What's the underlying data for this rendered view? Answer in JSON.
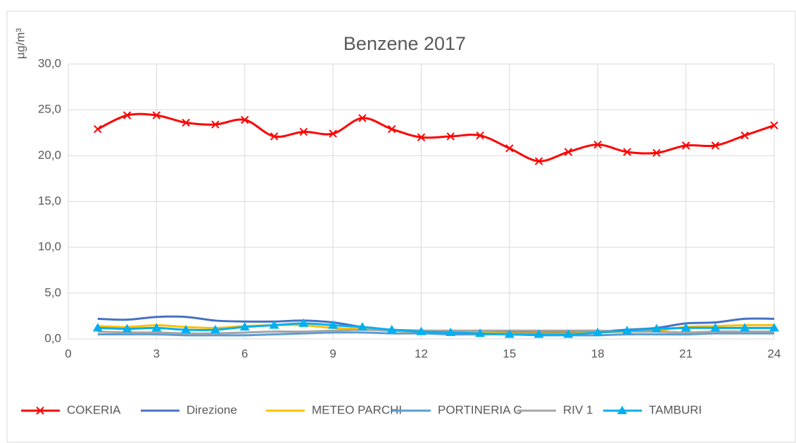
{
  "chart_data": {
    "type": "line",
    "title": "Benzene 2017",
    "y_label": "µg/m³",
    "x": [
      1,
      2,
      3,
      4,
      5,
      6,
      7,
      8,
      9,
      10,
      11,
      12,
      13,
      14,
      15,
      16,
      17,
      18,
      19,
      20,
      21,
      22,
      23,
      24
    ],
    "xlim": [
      0,
      24
    ],
    "xticks": [
      0,
      3,
      6,
      9,
      12,
      15,
      18,
      21,
      24
    ],
    "ylim": [
      0,
      30
    ],
    "yticks": [
      {
        "value": 0,
        "label": "0,0"
      },
      {
        "value": 5,
        "label": "5,0"
      },
      {
        "value": 10,
        "label": "10,0"
      },
      {
        "value": 15,
        "label": "15,0"
      },
      {
        "value": 20,
        "label": "20,0"
      },
      {
        "value": 25,
        "label": "25,0"
      },
      {
        "value": 30,
        "label": "30,0"
      }
    ],
    "grid": true,
    "smooth": true,
    "legend": "bottom",
    "series": [
      {
        "name": "COKERIA",
        "color": "#ff0000",
        "marker": "x",
        "values": [
          22.9,
          24.4,
          24.4,
          23.6,
          23.4,
          23.9,
          22.1,
          22.6,
          22.4,
          24.1,
          22.9,
          22.0,
          22.1,
          22.2,
          20.8,
          19.4,
          20.4,
          21.2,
          20.4,
          20.3,
          21.1,
          21.1,
          22.2,
          23.3
        ]
      },
      {
        "name": "Direzione",
        "color": "#4472c4",
        "values": [
          2.2,
          2.1,
          2.4,
          2.4,
          2.0,
          1.9,
          1.9,
          2.0,
          1.8,
          1.3,
          1.0,
          0.9,
          0.8,
          0.8,
          0.7,
          0.7,
          0.7,
          0.8,
          1.0,
          1.2,
          1.7,
          1.8,
          2.2,
          2.2
        ]
      },
      {
        "name": "METEO PARCHI",
        "color": "#ffc000",
        "values": [
          1.4,
          1.3,
          1.5,
          1.3,
          1.2,
          1.4,
          1.5,
          1.5,
          1.2,
          1.1,
          0.9,
          0.8,
          0.7,
          0.7,
          0.6,
          0.6,
          0.6,
          0.7,
          0.8,
          0.9,
          1.3,
          1.4,
          1.5,
          1.5
        ]
      },
      {
        "name": "PORTINERIA C",
        "color": "#5b9bd5",
        "values": [
          0.5,
          0.5,
          0.5,
          0.4,
          0.4,
          0.4,
          0.5,
          0.6,
          0.7,
          0.7,
          0.6,
          0.6,
          0.5,
          0.5,
          0.5,
          0.4,
          0.4,
          0.4,
          0.5,
          0.5,
          0.5,
          0.6,
          0.6,
          0.6
        ]
      },
      {
        "name": "RIV 1",
        "color": "#a5a5a5",
        "values": [
          0.8,
          0.7,
          0.7,
          0.6,
          0.6,
          0.7,
          0.8,
          0.8,
          0.9,
          1.0,
          0.9,
          0.9,
          0.9,
          0.9,
          0.9,
          0.9,
          0.9,
          0.9,
          0.8,
          0.8,
          0.7,
          0.8,
          0.8,
          0.8
        ]
      },
      {
        "name": "TAMBURI",
        "color": "#00b0f0",
        "marker": "triangle",
        "values": [
          1.2,
          1.1,
          1.2,
          1.0,
          1.0,
          1.3,
          1.5,
          1.7,
          1.5,
          1.3,
          1.0,
          0.8,
          0.7,
          0.6,
          0.5,
          0.5,
          0.5,
          0.7,
          0.9,
          1.1,
          1.2,
          1.2,
          1.2,
          1.2
        ]
      }
    ]
  }
}
